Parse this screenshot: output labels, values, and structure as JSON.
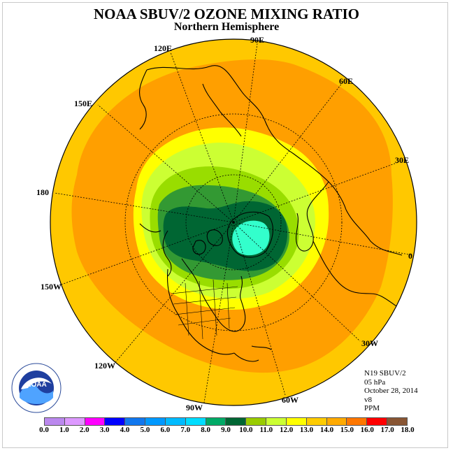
{
  "header": {
    "title": "NOAA SBUV/2 OZONE MIXING RATIO",
    "subtitle": "Northern Hemisphere"
  },
  "map": {
    "projection": "north-polar-stereographic",
    "longitude_labels": [
      "90E",
      "60E",
      "30E",
      "0",
      "30W",
      "60W",
      "90W",
      "120W",
      "150W",
      "180",
      "150E",
      "120E"
    ],
    "field_colors": {
      "outer_band": "#ffc800",
      "mid_band": "#ff9f00",
      "yellow": "#ffff00",
      "light_yellow_green": "#ccff33",
      "light_green": "#99dd00",
      "green": "#339933",
      "dark_green": "#006633",
      "cyan": "#33ffcc"
    }
  },
  "info": {
    "instrument": "N19 SBUV/2",
    "level": "05 hPa",
    "date": "October 28, 2014",
    "version": "v8",
    "units": "PPM"
  },
  "legend": {
    "labels": [
      "0.0",
      "1.0",
      "2.0",
      "3.0",
      "4.0",
      "5.0",
      "6.0",
      "7.0",
      "8.0",
      "9.0",
      "10.0",
      "11.0",
      "12.0",
      "13.0",
      "14.0",
      "15.0",
      "16.0",
      "17.0",
      "18.0"
    ],
    "colors": [
      "#bb88ee",
      "#dd99ff",
      "#ff00ff",
      "#0000ff",
      "#1177ee",
      "#0099ff",
      "#00bbff",
      "#00ddff",
      "#00aa66",
      "#006633",
      "#99cc00",
      "#ccff33",
      "#ffff00",
      "#ffcc00",
      "#ffaa00",
      "#ff7700",
      "#ff0000",
      "#885533"
    ]
  },
  "logo": {
    "text": "NOAA",
    "icon": "noaa-logo-icon"
  }
}
